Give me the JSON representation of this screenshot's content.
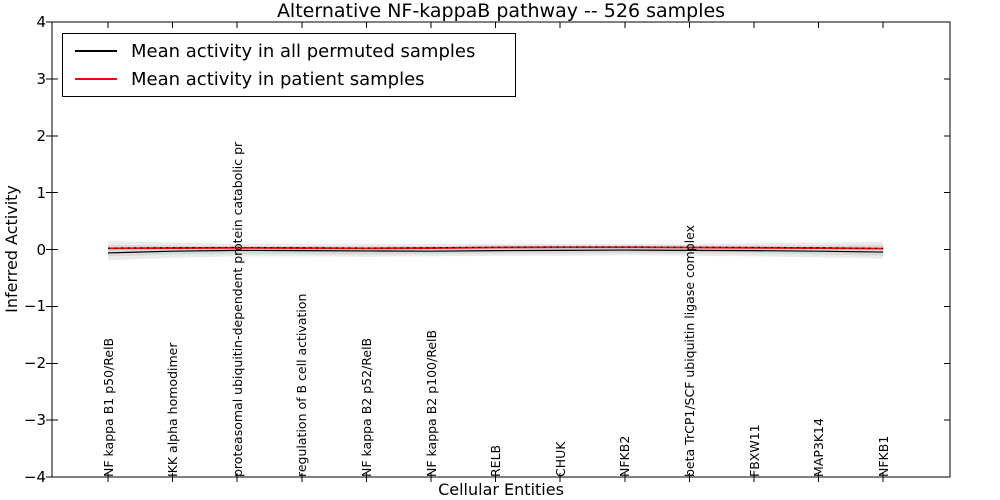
{
  "chart_data": {
    "type": "line",
    "title": "Alternative NF-kappaB pathway -- 526 samples",
    "xlabel": "Cellular Entities",
    "ylabel": "Inferred Activity",
    "ylim": [
      -4,
      4
    ],
    "yticks": [
      4,
      3,
      2,
      1,
      0,
      -1,
      -2,
      -3,
      -4
    ],
    "ytick_labels": [
      "4",
      "3",
      "2",
      "1",
      "0",
      "−1",
      "−2",
      "−3",
      "−4"
    ],
    "grid": false,
    "legend_position": "upper left",
    "categories": [
      "NF kappa B1 p50/RelB",
      "IKK alpha homodimer",
      "proteasomal ubiquitin-dependent protein catabolic pr",
      "regulation of B cell activation",
      "NF kappa B2 p52/RelB",
      "NF kappa B2 p100/RelB",
      "RELB",
      "CHUK",
      "NFKB2",
      "beta TrCP1/SCF ubiquitin ligase complex",
      "FBXW11",
      "MAP3K14",
      "NFKB1"
    ],
    "series": [
      {
        "name": "Mean activity in all permuted samples",
        "color": "#000000",
        "style": "solid",
        "width": 1.2,
        "values": [
          -0.06,
          -0.03,
          -0.015,
          -0.02,
          -0.025,
          -0.03,
          -0.02,
          -0.015,
          -0.01,
          -0.015,
          -0.02,
          -0.03,
          -0.045
        ]
      },
      {
        "name": "Mean activity in patient samples",
        "color": "#ff0000",
        "style": "solid",
        "width": 1.8,
        "values": [
          0.02,
          0.025,
          0.03,
          0.025,
          0.02,
          0.025,
          0.035,
          0.04,
          0.04,
          0.035,
          0.03,
          0.025,
          0.015
        ]
      },
      {
        "name": "permuted-mean-dotted-overlay",
        "color": "#000000",
        "style": "dotted",
        "width": 1.2,
        "values": [
          0.025,
          0.03,
          0.035,
          0.03,
          0.025,
          0.03,
          0.04,
          0.045,
          0.045,
          0.04,
          0.035,
          0.03,
          0.02
        ]
      }
    ],
    "bands": [
      {
        "name": "outer-std-band",
        "fill": "rgba(0,0,0,0.08)",
        "upper": [
          0.15,
          0.12,
          0.1,
          0.1,
          0.1,
          0.1,
          0.1,
          0.1,
          0.1,
          0.1,
          0.11,
          0.12,
          0.14
        ],
        "lower": [
          -0.19,
          -0.15,
          -0.12,
          -0.12,
          -0.13,
          -0.12,
          -0.11,
          -0.11,
          -0.1,
          -0.11,
          -0.12,
          -0.14,
          -0.16
        ]
      },
      {
        "name": "inner-std-band",
        "fill": "rgba(0,0,0,0.08)",
        "upper": [
          0.08,
          0.07,
          0.06,
          0.06,
          0.06,
          0.06,
          0.07,
          0.07,
          0.07,
          0.07,
          0.07,
          0.07,
          0.08
        ],
        "lower": [
          -0.12,
          -0.09,
          -0.08,
          -0.08,
          -0.09,
          -0.08,
          -0.07,
          -0.07,
          -0.06,
          -0.07,
          -0.07,
          -0.09,
          -0.11
        ]
      }
    ]
  }
}
